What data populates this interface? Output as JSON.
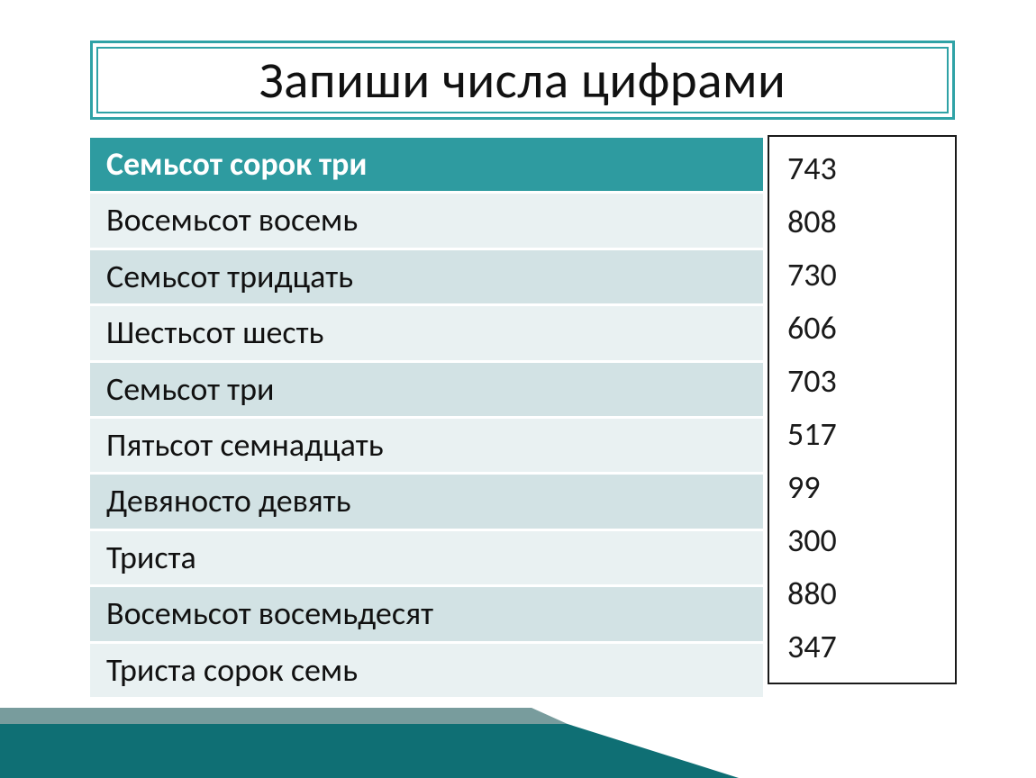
{
  "title": "Запиши числа цифрами",
  "table": {
    "rows": [
      {
        "word": "Семьсот сорок три",
        "style": "hdr"
      },
      {
        "word": "Восемьсот восемь",
        "style": "stripe-a"
      },
      {
        "word": "Семьсот тридцать",
        "style": "stripe-b"
      },
      {
        "word": "Шестьсот шесть",
        "style": "stripe-a"
      },
      {
        "word": "Семьсот три",
        "style": "stripe-b"
      },
      {
        "word": "Пятьсот семнадцать",
        "style": "stripe-a"
      },
      {
        "word": "Девяносто девять",
        "style": "stripe-b"
      },
      {
        "word": "Триста",
        "style": "stripe-a"
      },
      {
        "word": "Восемьсот восемьдесят",
        "style": "stripe-b"
      },
      {
        "word": "Триста сорок семь",
        "style": "stripe-a"
      }
    ],
    "colors": {
      "header_bg": "#2e9ba0",
      "header_text": "#ffffff",
      "stripe_a_bg": "#e9f1f2",
      "stripe_b_bg": "#d2e2e4",
      "text": "#111111",
      "row_fontsize": 36
    }
  },
  "numbers": [
    "743",
    "808",
    "730",
    "606",
    "703",
    "517",
    "99",
    "300",
    "880",
    "347"
  ],
  "numbers_box": {
    "border_color": "#1a1a1a",
    "background": "#ffffff",
    "text_color": "#1a1a1a",
    "fontsize": 36
  },
  "title_box": {
    "outer_border": "#2fa2a6",
    "inner_border": "#2fa2a6",
    "text_color": "#111111",
    "fontsize": 57
  },
  "decor_wedge": {
    "fill": "#0f6f74",
    "shadow": "#0a4a4d"
  }
}
